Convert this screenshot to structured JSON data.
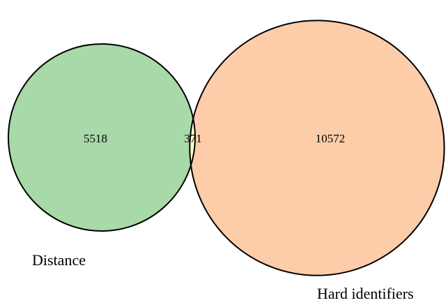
{
  "chart_data": {
    "type": "venn",
    "sets": [
      {
        "name": "Distance",
        "color": "#a8d9a8",
        "value": 5518
      },
      {
        "name": "Hard identifiers",
        "color": "#fdcca9",
        "value": 10572
      }
    ],
    "intersection": {
      "value": 371,
      "color": "#ffffc9"
    }
  }
}
